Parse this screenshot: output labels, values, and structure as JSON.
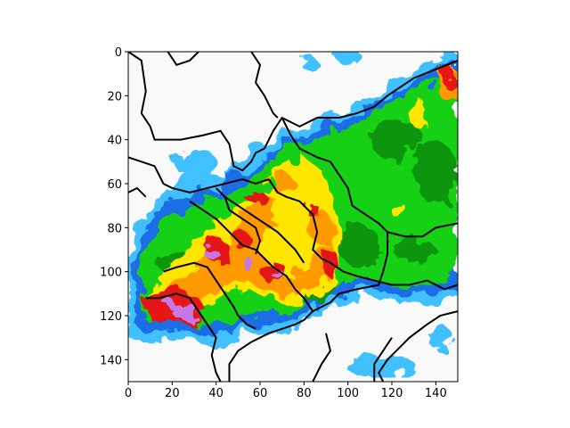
{
  "chart_data": {
    "type": "heatmap",
    "title": "",
    "xlabel": "",
    "ylabel": "",
    "xlim": [
      0,
      150
    ],
    "ylim": [
      150,
      0
    ],
    "x_ticks": [
      0,
      20,
      40,
      60,
      80,
      100,
      120,
      140
    ],
    "y_ticks": [
      0,
      20,
      40,
      60,
      80,
      100,
      120,
      140
    ],
    "x_tick_labels": [
      "0",
      "20",
      "40",
      "60",
      "80",
      "100",
      "120",
      "140"
    ],
    "y_tick_labels": [
      "0",
      "20",
      "40",
      "60",
      "80",
      "100",
      "120",
      "140"
    ],
    "grid": false,
    "colorbar": false,
    "description_levels": [
      "none",
      "light-blue",
      "blue",
      "green",
      "dark-green",
      "yellow",
      "orange",
      "red",
      "magenta"
    ],
    "colors": {
      "none": "#f9f9f9",
      "light_blue": "#40c0ff",
      "blue": "#1e6ee6",
      "green": "#12d012",
      "dark_green": "#0a960a",
      "yellow": "#ffe600",
      "orange": "#ff9900",
      "red": "#e61414",
      "magenta": "#c878e6",
      "boundary": "#000000"
    }
  }
}
